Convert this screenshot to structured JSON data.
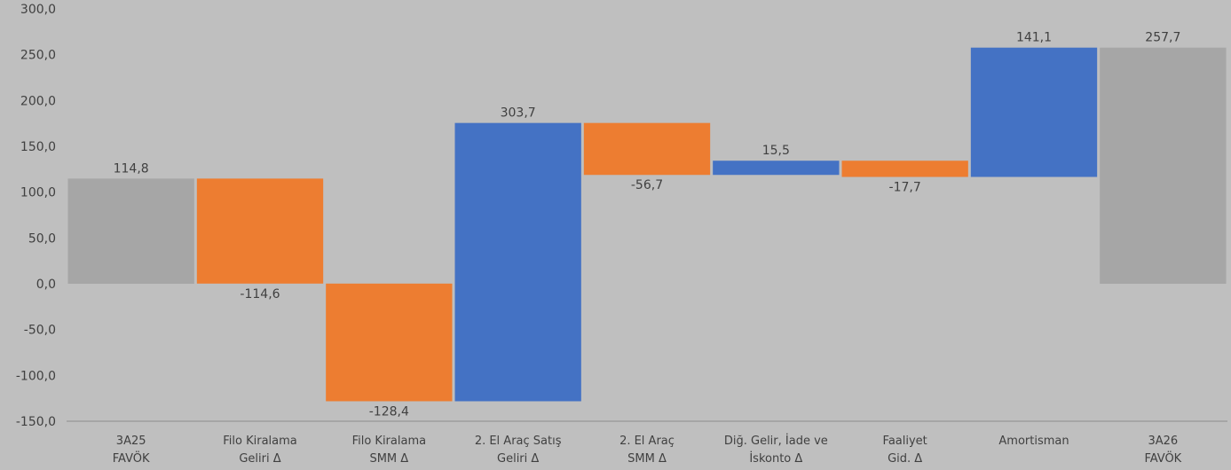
{
  "chart_data": {
    "type": "bar",
    "subtype": "waterfall",
    "title": "",
    "xlabel": "",
    "ylabel": "",
    "ylim": [
      -150,
      300
    ],
    "yticks": [
      "300,0",
      "250,0",
      "200,0",
      "150,0",
      "100,0",
      "50,0",
      "0,0",
      "-50,0",
      "-100,0",
      "-150,0"
    ],
    "ytick_values": [
      300,
      250,
      200,
      150,
      100,
      50,
      0,
      -50,
      -100,
      -150
    ],
    "grid": false,
    "legend": "none",
    "colors": {
      "background": "#bfbfbf",
      "total": "#a6a6a6",
      "increase": "#4472c4",
      "decrease": "#ed7d31",
      "axis": "#8c8c8c",
      "text": "#404040"
    },
    "categories": [
      [
        "3A25",
        "FAVÖK"
      ],
      [
        "Filo Kiralama",
        "Geliri Δ"
      ],
      [
        "Filo Kiralama",
        "SMM Δ"
      ],
      [
        "2. El Araç Satış",
        "Geliri Δ"
      ],
      [
        "2. El Araç",
        "SMM Δ"
      ],
      [
        "Diğ. Gelir, İade ve",
        "İskonto Δ"
      ],
      [
        "Faaliyet",
        "Gid. Δ"
      ],
      [
        "Amortisman"
      ],
      [
        "3A26",
        "FAVÖK"
      ]
    ],
    "bars": [
      {
        "kind": "total",
        "from": 0,
        "to": 114.8,
        "value": 114.8,
        "label": "114,8",
        "label_pos": "above"
      },
      {
        "kind": "decrease",
        "from": 114.8,
        "to": 0.2,
        "value": -114.6,
        "label": "-114,6",
        "label_pos": "below"
      },
      {
        "kind": "decrease",
        "from": 0.2,
        "to": -128.2,
        "value": -128.4,
        "label": "-128,4",
        "label_pos": "below"
      },
      {
        "kind": "increase",
        "from": -128.2,
        "to": 175.5,
        "value": 303.7,
        "label": "303,7",
        "label_pos": "above"
      },
      {
        "kind": "decrease",
        "from": 175.5,
        "to": 118.8,
        "value": -56.7,
        "label": "-56,7",
        "label_pos": "below"
      },
      {
        "kind": "increase",
        "from": 118.8,
        "to": 134.3,
        "value": 15.5,
        "label": "15,5",
        "label_pos": "above"
      },
      {
        "kind": "decrease",
        "from": 134.3,
        "to": 116.6,
        "value": -17.7,
        "label": "-17,7",
        "label_pos": "below"
      },
      {
        "kind": "increase",
        "from": 116.6,
        "to": 257.7,
        "value": 141.1,
        "label": "141,1",
        "label_pos": "above"
      },
      {
        "kind": "total",
        "from": 0,
        "to": 257.7,
        "value": 257.7,
        "label": "257,7",
        "label_pos": "above"
      }
    ]
  }
}
